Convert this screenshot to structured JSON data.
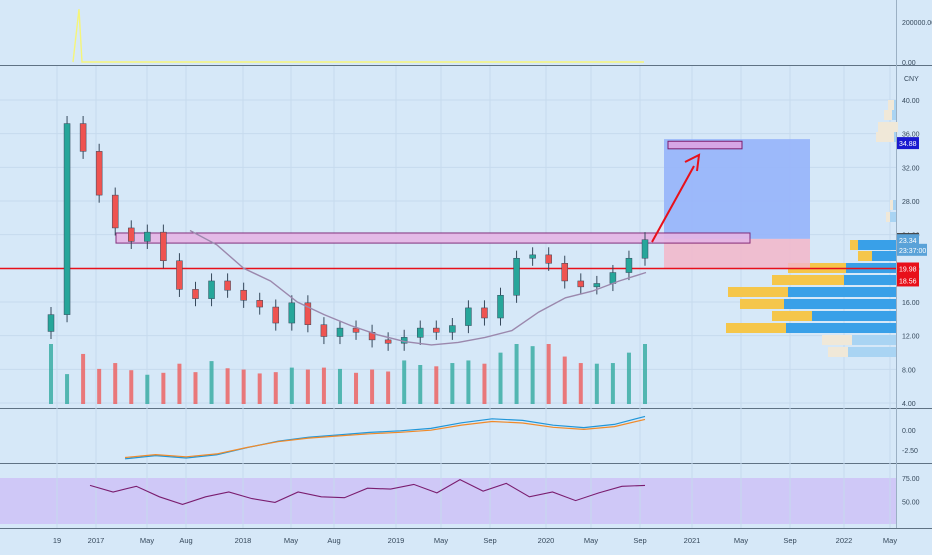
{
  "chart_data": [
    {
      "panel": "oscillator-top",
      "type": "line",
      "y_ticks": [
        "200000.00",
        "0.00"
      ],
      "series": [
        {
          "color": "#f5f57a",
          "values": [
            0,
            215000,
            0,
            0,
            0,
            0,
            0,
            0
          ]
        }
      ]
    },
    {
      "panel": "price",
      "type": "candlestick",
      "currency": "CNY",
      "y_ticks": [
        "40.00",
        "36.00",
        "32.00",
        "28.00",
        "24.00",
        "20.00",
        "16.00",
        "12.00",
        "8.00",
        "4.00"
      ],
      "ylim": [
        4,
        42
      ],
      "x_ticks": [
        "19",
        "2017",
        "May",
        "Aug",
        "2018",
        "May",
        "Aug",
        "2019",
        "May",
        "Sep",
        "2020",
        "May",
        "Sep",
        "2021",
        "May",
        "Sep",
        "2022",
        "May"
      ],
      "price_labels": [
        {
          "text": "34.88",
          "value": 34.88,
          "color": "#1a1ad0"
        },
        {
          "text": "23.48",
          "value": 23.48,
          "color": "#444444"
        },
        {
          "text": "23.34",
          "value": 23.34,
          "color": "#5aa2d8"
        },
        {
          "text": "23:37:00",
          "value": 22.2,
          "color": "#5aa2d8"
        },
        {
          "text": "19.98",
          "value": 19.98,
          "color": "#e8101a"
        },
        {
          "text": "18.56",
          "value": 18.56,
          "color": "#e8101a"
        }
      ],
      "support_line": 19.98,
      "resistance_zone": [
        23.0,
        24.2
      ],
      "target_zone": [
        34.2,
        35.1
      ],
      "moving_average": [
        24.5,
        22.8,
        20,
        18.5,
        16,
        14.5,
        13.2,
        12.1,
        11.3,
        10.9,
        11.2,
        11.8,
        12.6,
        14.8,
        16.5,
        17.3,
        18.5,
        19.5
      ],
      "close": [
        14.5,
        37.2,
        33.9,
        28.7,
        24.8,
        23.2,
        24.3,
        20.9,
        17.5,
        16.4,
        18.5,
        17.4,
        16.2,
        15.4,
        13.5,
        15.9,
        13.3,
        11.9,
        12.9,
        12.4,
        11.5,
        11.1,
        11.8,
        12.9,
        12.4,
        13.2,
        15.3,
        14.1,
        16.8,
        21.2,
        21.6,
        20.6,
        18.5,
        17.8,
        18.2,
        19.5,
        21.2,
        23.4
      ]
    },
    {
      "panel": "volume",
      "type": "bar",
      "values": [
        12,
        4.6,
        7.7,
        5.4,
        6.3,
        5.2,
        4.5,
        4.8,
        6.2,
        4.9,
        6.6,
        5.5,
        5.3,
        4.7,
        4.9,
        5.6,
        5.3,
        5.6,
        5.4,
        4.8,
        5.3,
        5,
        6.7,
        6,
        5.8,
        6.3,
        6.7,
        6.2,
        7.9,
        10.5,
        8.9,
        9.7,
        7.3,
        6.3,
        6.2,
        6.3,
        7.9,
        9.5
      ]
    },
    {
      "panel": "macd",
      "type": "line",
      "y_ticks": [
        "0.00",
        "-2.50"
      ],
      "series": [
        {
          "color": "#2196d8",
          "values": [
            -3.6,
            -3.2,
            -3.5,
            -3.1,
            -2.2,
            -1.4,
            -0.9,
            -0.6,
            -0.3,
            -0.1,
            0.2,
            0.9,
            1.4,
            1.2,
            0.6,
            0.3,
            0.7,
            1.7
          ]
        }
      ]
    },
    {
      "panel": "rsi",
      "type": "line",
      "y_ticks": [
        "75.00",
        "50.00"
      ],
      "series": [
        {
          "color": "#7a1d6f",
          "values": [
            67,
            60,
            66,
            55,
            47,
            55,
            60,
            53,
            49,
            60,
            55,
            54,
            64,
            63,
            68,
            59,
            73,
            61,
            69,
            55,
            60,
            51,
            59,
            66,
            67
          ]
        }
      ]
    }
  ],
  "toolbar_labels": {
    "cny_label": "CNY"
  }
}
